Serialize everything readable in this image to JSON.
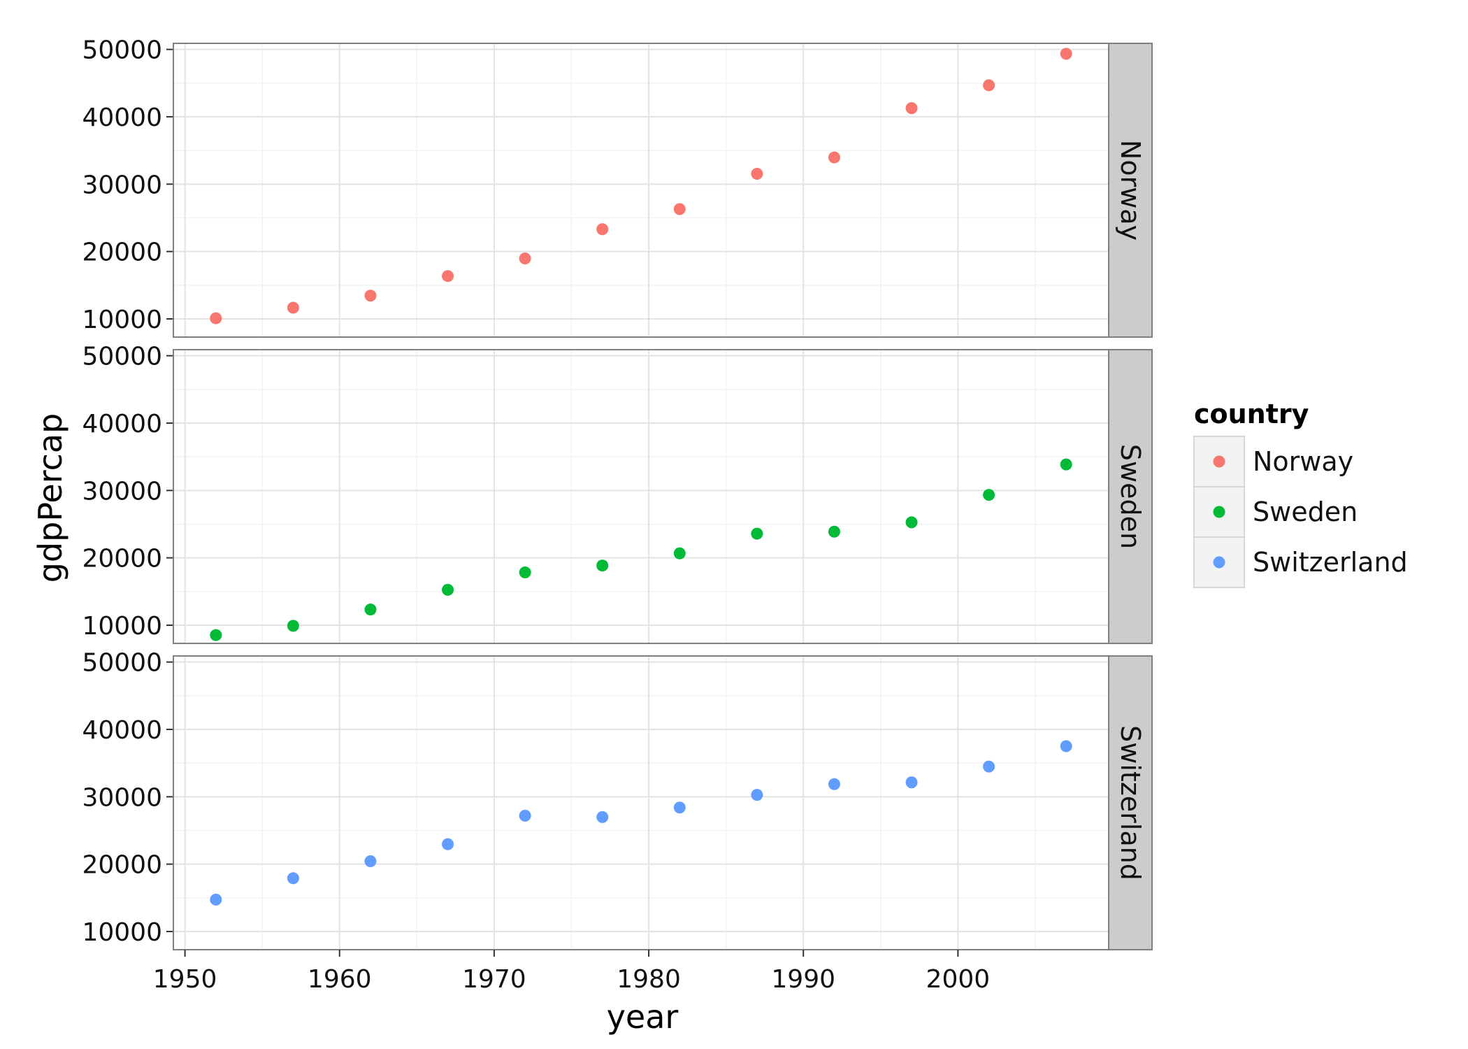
{
  "chart_data": {
    "type": "scatter",
    "xlabel": "year",
    "ylabel": "gdpPercap",
    "xlim": [
      1949.25,
      2009.75
    ],
    "ylim": [
      7300,
      50900
    ],
    "x_ticks": [
      1950,
      1960,
      1970,
      1980,
      1990,
      2000
    ],
    "y_ticks": [
      10000,
      20000,
      30000,
      40000,
      50000
    ],
    "x_tick_labels": [
      "1950",
      "1960",
      "1970",
      "1980",
      "1990",
      "2000"
    ],
    "y_tick_labels": [
      "10000",
      "20000",
      "30000",
      "40000",
      "50000"
    ],
    "grid": true,
    "facets": "rows",
    "legend": {
      "title": "country",
      "position": "right",
      "entries": [
        "Norway",
        "Sweden",
        "Switzerland"
      ]
    },
    "x": [
      1952,
      1957,
      1962,
      1967,
      1972,
      1977,
      1982,
      1987,
      1992,
      1997,
      2002,
      2007
    ],
    "series": [
      {
        "name": "Norway",
        "color": "#F8766D",
        "values": [
          10095,
          11654,
          13450,
          16362,
          18965,
          23311,
          26298,
          31541,
          33965,
          41283,
          44684,
          49357
        ]
      },
      {
        "name": "Sweden",
        "color": "#00BA38",
        "values": [
          8528,
          9912,
          12329,
          15258,
          17832,
          18855,
          20667,
          23587,
          23880,
          25267,
          29342,
          33860
        ]
      },
      {
        "name": "Switzerland",
        "color": "#619CFF",
        "values": [
          14734,
          17909,
          20431,
          22966,
          27195,
          26982,
          28398,
          30282,
          31872,
          32136,
          34481,
          37506
        ]
      }
    ]
  }
}
